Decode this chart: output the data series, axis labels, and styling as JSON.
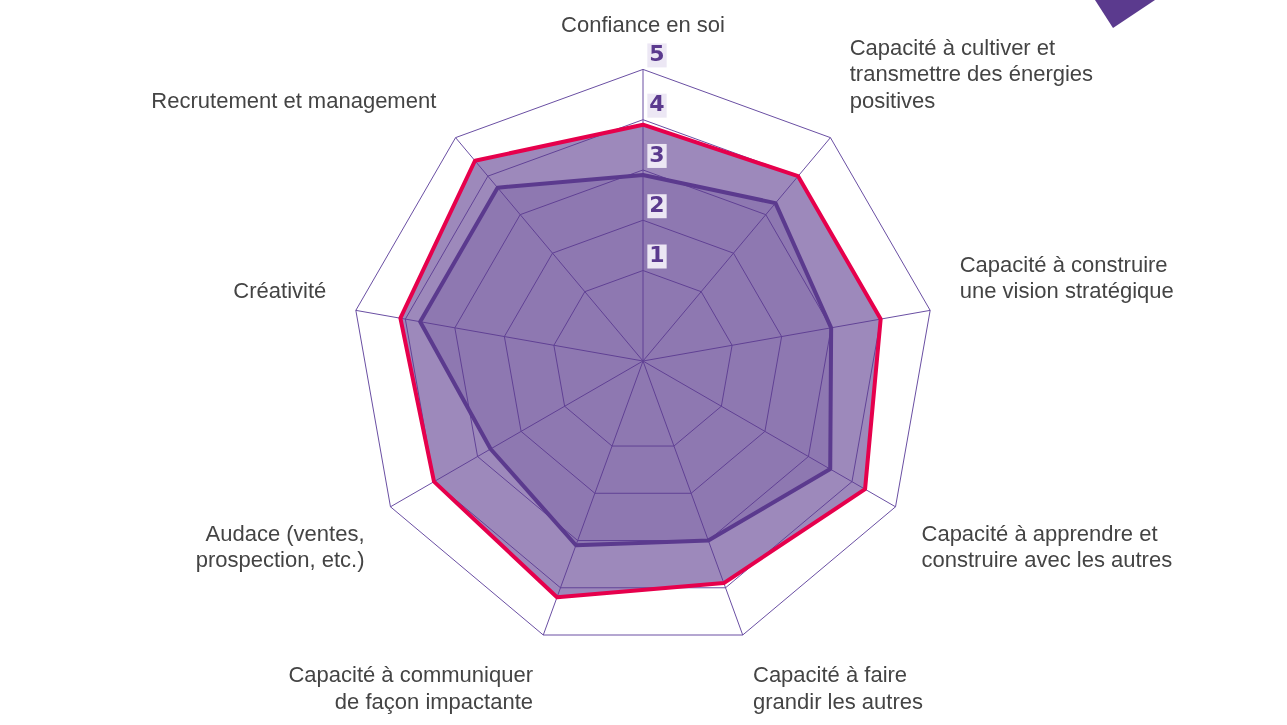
{
  "chart_data": {
    "type": "radar",
    "categories": [
      "Confiance en soi",
      "Capacité à cultiver et transmettre des énergies positives",
      "Capacité à construire une vision stratégique",
      "Capacité à apprendre et construire avec les autres",
      "Capacité à faire grandir les autres",
      "Capacité à communiquer de façon impactante",
      "Audace (ventes, prospection, etc.)",
      "Créativité",
      "Recrutement et management"
    ],
    "series": [
      {
        "color": "#e6004c",
        "values": [
          3.9,
          4.0,
          4.0,
          4.3,
          3.9,
          4.2,
          4.0,
          4.1,
          4.4
        ]
      },
      {
        "color": "#5b3a8e",
        "values": [
          2.9,
          3.3,
          3.0,
          3.5,
          3.0,
          3.1,
          2.7,
          3.7,
          3.7
        ]
      }
    ],
    "ylim": [
      -0.8,
      5
    ],
    "yticks": [
      1,
      2,
      3,
      4,
      5
    ],
    "grid": true,
    "legend": false,
    "marker": "none"
  }
}
